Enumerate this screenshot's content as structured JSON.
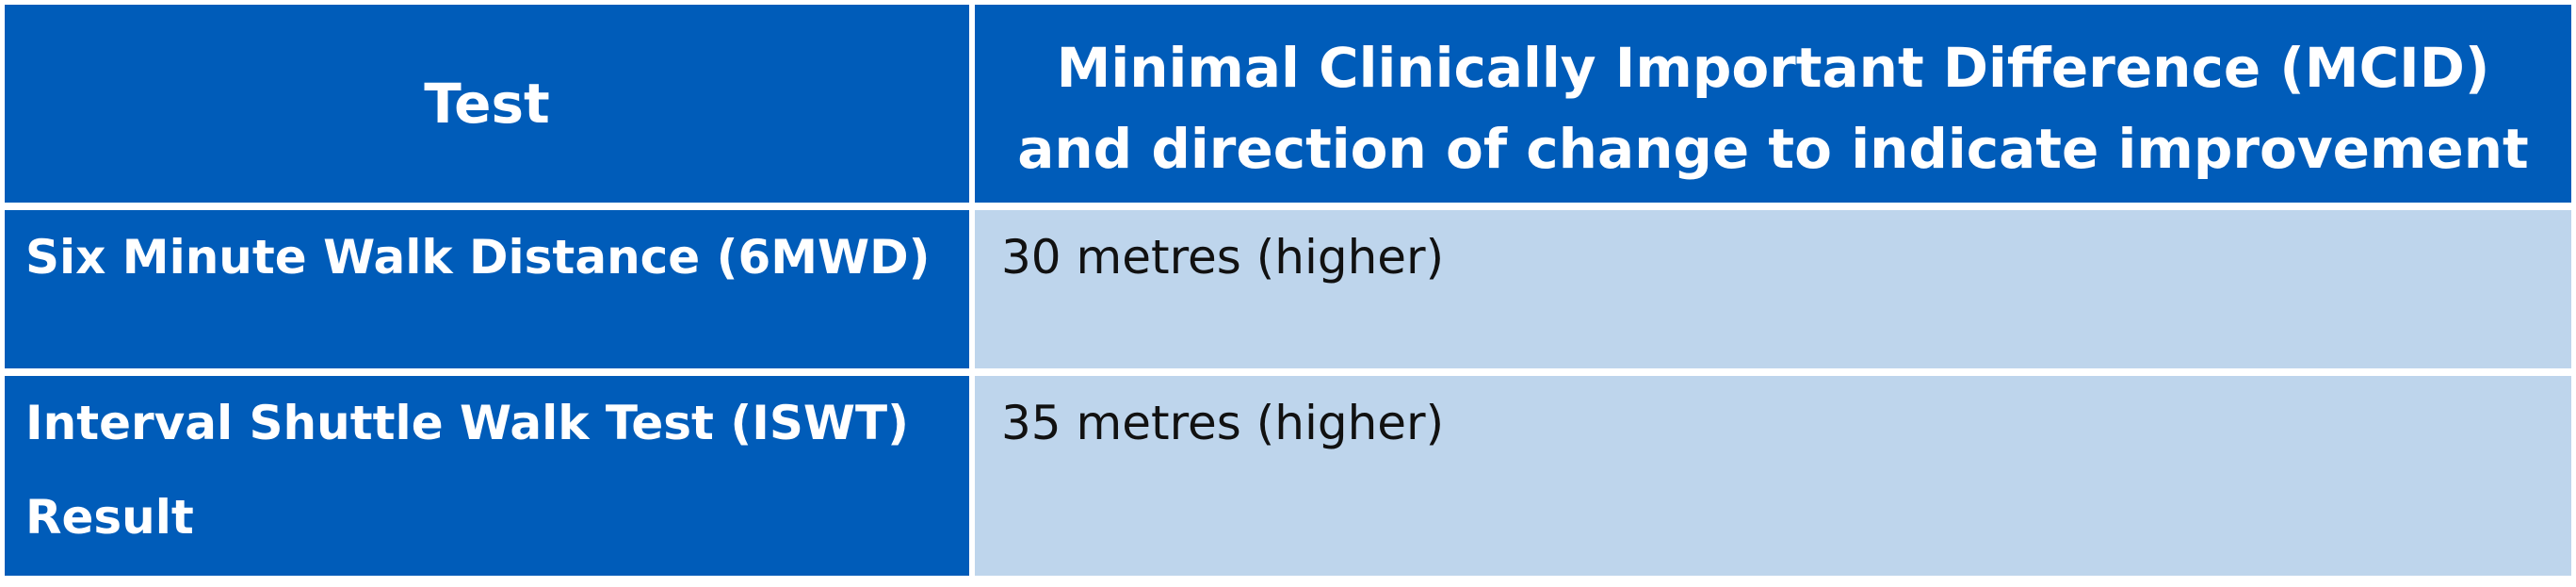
{
  "table": {
    "headers": {
      "test": "Test",
      "mcid": "Minimal Clinically Important Difference (MCID) and direction of change to indicate improvement"
    },
    "rows": [
      {
        "test": "Six Minute Walk Distance (6MWD)",
        "mcid": "30 metres (higher)"
      },
      {
        "test": "Interval Shuttle Walk Test (ISWT) Result",
        "mcid": "35 metres (higher)"
      }
    ]
  },
  "colors": {
    "header_bg": "#005cb9",
    "value_cell_bg": "#bed5ec",
    "header_text": "#ffffff",
    "body_text": "#111111"
  }
}
